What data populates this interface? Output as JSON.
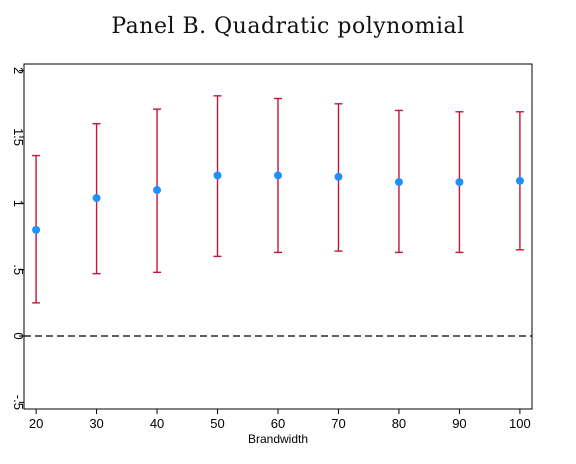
{
  "chart_data": {
    "type": "scatter",
    "title": "Panel B. Quadratic polynomial",
    "xlabel": "Brandwidth",
    "ylabel": "",
    "x": [
      20,
      30,
      40,
      50,
      60,
      70,
      80,
      90,
      100
    ],
    "series": [
      {
        "point": [
          0.8,
          1.04,
          1.1,
          1.21,
          1.21,
          1.2,
          1.16,
          1.16,
          1.17
        ],
        "ci_low": [
          0.25,
          0.47,
          0.48,
          0.6,
          0.63,
          0.64,
          0.63,
          0.63,
          0.65
        ],
        "ci_high": [
          1.36,
          1.6,
          1.71,
          1.81,
          1.79,
          1.75,
          1.7,
          1.69,
          1.69
        ]
      }
    ],
    "x_ticks": [
      "20",
      "30",
      "40",
      "50",
      "60",
      "70",
      "80",
      "90",
      "100"
    ],
    "y_ticks": [
      "-.5",
      "0",
      ".5",
      "1",
      "1.5",
      "2"
    ],
    "y_tick_values": [
      -0.5,
      0,
      0.5,
      1,
      1.5,
      2
    ],
    "xlim": [
      18,
      102
    ],
    "ylim": [
      -0.55,
      2.05
    ],
    "reference_line_y": 0,
    "grid": false,
    "colors": {
      "point": "#1e90ff",
      "ci": "#c8143c",
      "reference": "#000000"
    }
  }
}
